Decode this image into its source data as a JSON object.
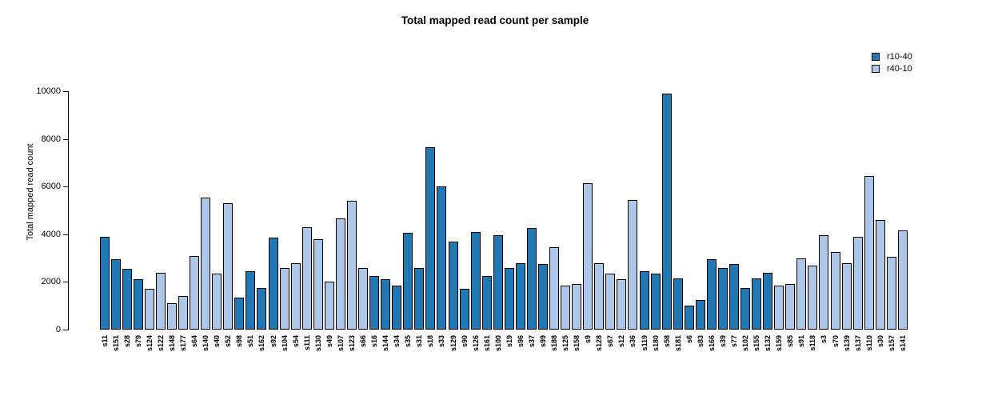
{
  "chart_data": {
    "type": "bar",
    "title": "Total mapped read count per sample",
    "xlabel": "",
    "ylabel": "Total mapped read count",
    "ylim": [
      0,
      10000
    ],
    "yticks": [
      0,
      2000,
      4000,
      6000,
      8000,
      10000
    ],
    "grid": false,
    "legend_position": "top-right",
    "series": [
      {
        "name": "r10-40",
        "color": "#1F77B4"
      },
      {
        "name": "r40-10",
        "color": "#AEC7E8"
      }
    ],
    "categories": [
      "s11",
      "s151",
      "s28",
      "s79",
      "s124",
      "s122",
      "s148",
      "s177",
      "s64",
      "s140",
      "s40",
      "s52",
      "s98",
      "s51",
      "s162",
      "s92",
      "s104",
      "s54",
      "s111",
      "s130",
      "s49",
      "s107",
      "s123",
      "s66",
      "s16",
      "s144",
      "s34",
      "s35",
      "s31",
      "s18",
      "s33",
      "s129",
      "s90",
      "s126",
      "s161",
      "s100",
      "s19",
      "s96",
      "s37",
      "s99",
      "s188",
      "s125",
      "s158",
      "s9",
      "s128",
      "s67",
      "s12",
      "s36",
      "s119",
      "s180",
      "s58",
      "s181",
      "s6",
      "s83",
      "s166",
      "s39",
      "s77",
      "s102",
      "s155",
      "s132",
      "s159",
      "s85",
      "s91",
      "s118",
      "s3",
      "s70",
      "s139",
      "s137",
      "s110",
      "s30",
      "s157",
      "s141"
    ],
    "values": [
      3900,
      2950,
      2550,
      2100,
      1700,
      2400,
      1100,
      1400,
      3100,
      5550,
      2350,
      5300,
      1350,
      2450,
      1750,
      3850,
      2600,
      2800,
      4300,
      3800,
      2000,
      4650,
      5400,
      2600,
      2250,
      2100,
      1850,
      4050,
      2600,
      7650,
      6000,
      3700,
      1700,
      4100,
      2250,
      3950,
      2600,
      2800,
      4250,
      2750,
      3450,
      1850,
      1900,
      6150,
      2800,
      2350,
      2100,
      5450,
      2450,
      2350,
      9900,
      2150,
      1000,
      1250,
      2950,
      2600,
      2750,
      1750,
      2150,
      2400,
      1850,
      1900,
      3000,
      2700,
      3950,
      3250,
      2800,
      3900,
      6450,
      4600,
      3050,
      4150
    ],
    "series_index": [
      0,
      0,
      0,
      0,
      1,
      1,
      1,
      1,
      1,
      1,
      1,
      1,
      0,
      0,
      0,
      0,
      1,
      1,
      1,
      1,
      1,
      1,
      1,
      1,
      0,
      0,
      0,
      0,
      0,
      0,
      0,
      0,
      0,
      0,
      0,
      0,
      0,
      0,
      0,
      0,
      1,
      1,
      1,
      1,
      1,
      1,
      1,
      1,
      0,
      0,
      0,
      0,
      0,
      0,
      0,
      0,
      0,
      0,
      0,
      0,
      1,
      1,
      1,
      1,
      1,
      1,
      1,
      1,
      1,
      1,
      1,
      1
    ]
  }
}
